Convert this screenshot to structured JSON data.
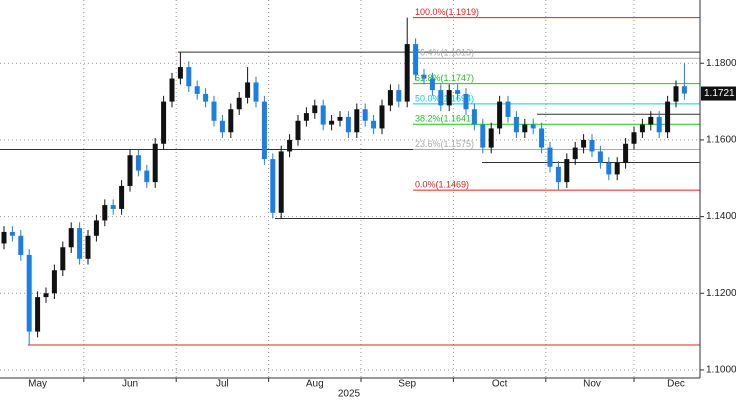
{
  "chart_data": {
    "type": "candlestick",
    "x_label": "2025",
    "categories": [
      null,
      null,
      null,
      null,
      "May",
      null,
      null,
      null,
      null,
      null,
      null,
      null,
      null,
      null,
      null,
      "Jun",
      null,
      null,
      null,
      null,
      null,
      null,
      null,
      null,
      null,
      null,
      "Jul",
      null,
      null,
      null,
      null,
      null,
      null,
      null,
      null,
      null,
      null,
      "Aug",
      null,
      null,
      null,
      null,
      null,
      null,
      null,
      null,
      null,
      null,
      "Sep",
      null,
      null,
      null,
      null,
      null,
      null,
      null,
      null,
      null,
      null,
      "Oct",
      null,
      null,
      null,
      null,
      null,
      null,
      null,
      null,
      null,
      null,
      "Nov",
      null,
      null,
      null,
      null,
      null,
      null,
      null,
      null,
      null,
      "Dec",
      null
    ],
    "open": [
      1.133,
      1.136,
      1.135,
      1.13,
      1.11,
      1.119,
      1.12,
      1.126,
      1.132,
      1.137,
      1.129,
      1.135,
      1.139,
      1.143,
      1.142,
      1.148,
      1.156,
      1.152,
      1.149,
      1.159,
      1.17,
      1.176,
      1.179,
      1.174,
      1.172,
      1.17,
      1.165,
      1.162,
      1.168,
      1.171,
      1.175,
      1.17,
      1.155,
      1.141,
      1.157,
      1.16,
      1.165,
      1.167,
      1.169,
      1.164,
      1.165,
      1.166,
      1.162,
      1.168,
      1.165,
      1.163,
      1.169,
      1.173,
      1.17,
      1.185,
      1.177,
      1.176,
      1.173,
      1.169,
      1.173,
      1.172,
      1.168,
      1.164,
      1.158,
      1.163,
      1.17,
      1.166,
      1.162,
      1.164,
      1.163,
      1.158,
      1.153,
      1.149,
      1.155,
      1.158,
      1.16,
      1.157,
      1.154,
      1.151,
      1.154,
      1.159,
      1.162,
      1.164,
      1.166,
      1.162,
      1.17,
      1.174
    ],
    "high": [
      1.1375,
      1.1375,
      1.1365,
      1.1315,
      1.1205,
      1.1215,
      1.1275,
      1.1335,
      1.1385,
      1.1385,
      1.1365,
      1.1405,
      1.1445,
      1.1445,
      1.1495,
      1.1575,
      1.1575,
      1.1535,
      1.1605,
      1.1715,
      1.1775,
      1.1829,
      1.1805,
      1.1755,
      1.1735,
      1.1715,
      1.1665,
      1.1695,
      1.1725,
      1.179,
      1.1765,
      1.1715,
      1.1565,
      1.1585,
      1.1615,
      1.1665,
      1.1685,
      1.1705,
      1.1705,
      1.1665,
      1.1675,
      1.1675,
      1.1695,
      1.1695,
      1.1665,
      1.1705,
      1.1745,
      1.1745,
      1.1919,
      1.1865,
      1.1785,
      1.1775,
      1.1745,
      1.1745,
      1.1745,
      1.1735,
      1.1695,
      1.1655,
      1.1645,
      1.1715,
      1.1715,
      1.1675,
      1.1655,
      1.1655,
      1.1645,
      1.1595,
      1.1545,
      1.1565,
      1.1595,
      1.1615,
      1.1615,
      1.1585,
      1.1555,
      1.1555,
      1.1605,
      1.1635,
      1.1655,
      1.1675,
      1.1675,
      1.1715,
      1.1755,
      1.18
    ],
    "low": [
      1.1315,
      1.1335,
      1.1285,
      1.1065,
      1.1085,
      1.1175,
      1.1185,
      1.1245,
      1.1305,
      1.1275,
      1.1275,
      1.1335,
      1.1375,
      1.1405,
      1.1405,
      1.1465,
      1.1505,
      1.1475,
      1.1475,
      1.1575,
      1.1685,
      1.1745,
      1.1725,
      1.1705,
      1.1685,
      1.1635,
      1.1605,
      1.1605,
      1.1665,
      1.1695,
      1.1685,
      1.1535,
      1.1395,
      1.1395,
      1.1555,
      1.1585,
      1.1635,
      1.1655,
      1.1625,
      1.1625,
      1.1635,
      1.1605,
      1.1605,
      1.1635,
      1.1615,
      1.1615,
      1.1675,
      1.1685,
      1.1685,
      1.1755,
      1.1745,
      1.1715,
      1.1675,
      1.1675,
      1.1705,
      1.1665,
      1.1625,
      1.1565,
      1.1565,
      1.1615,
      1.1645,
      1.1605,
      1.1605,
      1.1615,
      1.1565,
      1.1515,
      1.1469,
      1.1475,
      1.1535,
      1.1565,
      1.1555,
      1.1525,
      1.1495,
      1.1495,
      1.1525,
      1.1575,
      1.1605,
      1.1625,
      1.1605,
      1.1605,
      1.1685,
      1.1705
    ],
    "close": [
      1.136,
      1.135,
      1.13,
      1.11,
      1.119,
      1.12,
      1.126,
      1.132,
      1.137,
      1.129,
      1.135,
      1.139,
      1.143,
      1.142,
      1.148,
      1.156,
      1.152,
      1.149,
      1.159,
      1.17,
      1.176,
      1.179,
      1.174,
      1.172,
      1.17,
      1.165,
      1.162,
      1.168,
      1.171,
      1.175,
      1.17,
      1.155,
      1.141,
      1.157,
      1.16,
      1.165,
      1.167,
      1.169,
      1.164,
      1.165,
      1.166,
      1.162,
      1.168,
      1.165,
      1.163,
      1.169,
      1.173,
      1.17,
      1.185,
      1.177,
      1.176,
      1.173,
      1.169,
      1.173,
      1.172,
      1.168,
      1.164,
      1.158,
      1.163,
      1.17,
      1.166,
      1.162,
      1.164,
      1.163,
      1.158,
      1.153,
      1.149,
      1.155,
      1.158,
      1.16,
      1.157,
      1.154,
      1.151,
      1.154,
      1.159,
      1.162,
      1.164,
      1.166,
      1.162,
      1.17,
      1.174,
      1.1721
    ],
    "up_color": "#111111",
    "down_color": "#1a7fe0",
    "ylim": [
      1.0979,
      1.1965
    ],
    "yticks": [
      {
        "value": 1.1,
        "label": "1.1000"
      },
      {
        "value": 1.12,
        "label": "1.1200"
      },
      {
        "value": 1.14,
        "label": "1.1400"
      },
      {
        "value": 1.16,
        "label": "1.1600"
      },
      {
        "value": 1.18,
        "label": "1.1800"
      }
    ],
    "grid": true,
    "levels": [
      {
        "value": 1.1829,
        "color": "#333333"
      },
      {
        "value": 1.1575,
        "color": "#333333"
      },
      {
        "value": 1.1395,
        "color": "#333333"
      },
      {
        "value": 1.1065,
        "color": "#e02020"
      },
      {
        "value": 1.1541,
        "color": "#333333"
      },
      {
        "value": 1.1667,
        "color": "#333333"
      }
    ],
    "fibonacci": [
      {
        "value": 1.1919,
        "label": "100.0%(1.1919)",
        "color": "#e02020"
      },
      {
        "value": 1.1813,
        "label": "76.4%(1.1813)",
        "color": "#aaaaaa"
      },
      {
        "value": 1.1747,
        "label": "61.8%(1.1747)",
        "color": "#22c422"
      },
      {
        "value": 1.1694,
        "label": "50.0%(1.1694)",
        "color": "#00d2e6"
      },
      {
        "value": 1.1641,
        "label": "38.2%(1.1641)",
        "color": "#22c422"
      },
      {
        "value": 1.1575,
        "label": "23.6%(1.1575)",
        "color": "#aaaaaa"
      },
      {
        "value": 1.1469,
        "label": "0.0%(1.1469)",
        "color": "#e02020"
      }
    ],
    "last_price": {
      "value": 1.1721,
      "label": "1.1721"
    }
  }
}
